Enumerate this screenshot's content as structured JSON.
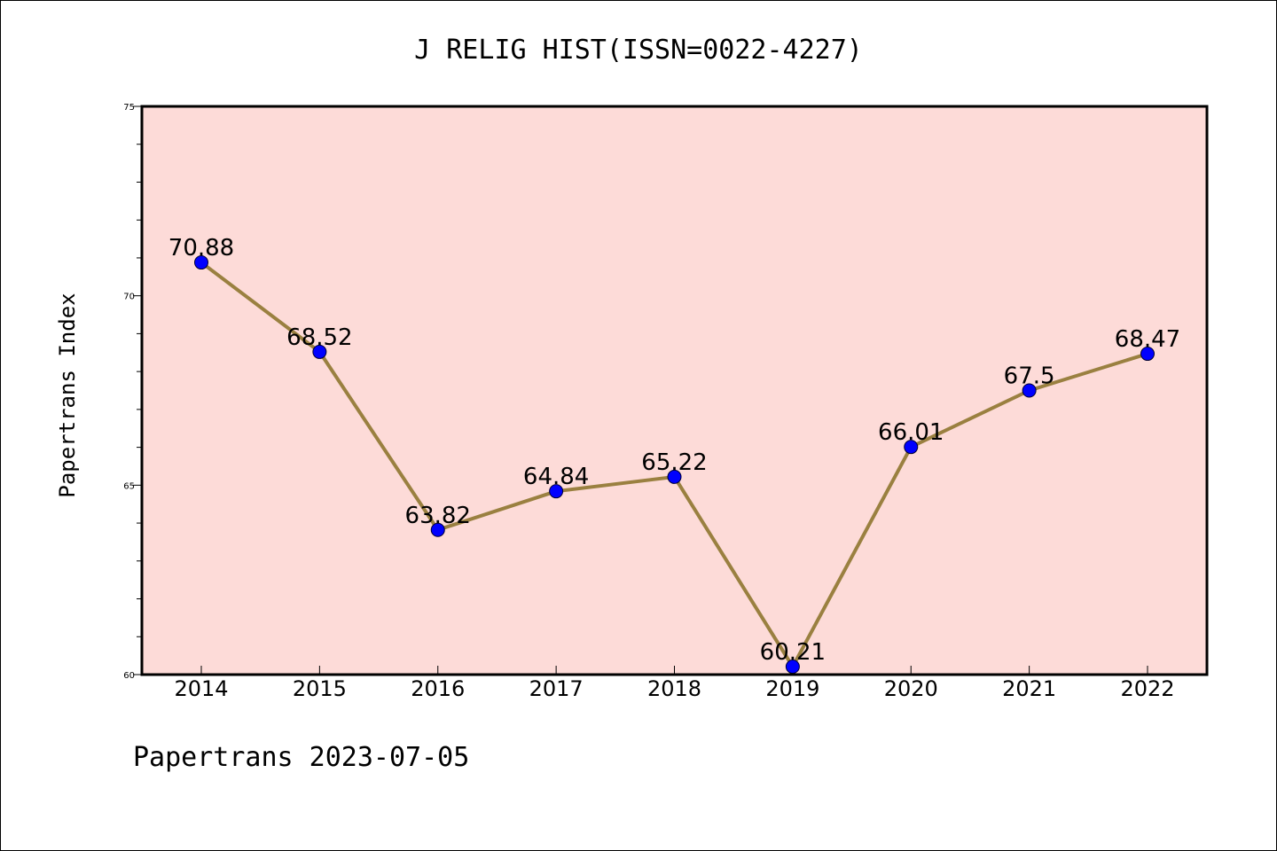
{
  "chart_data": {
    "type": "line",
    "title": "J RELIG HIST(ISSN=0022-4227)",
    "xlabel": "",
    "ylabel": "Papertrans Index",
    "footer": "Papertrans 2023-07-05",
    "categories": [
      "2014",
      "2015",
      "2016",
      "2017",
      "2018",
      "2019",
      "2020",
      "2021",
      "2022"
    ],
    "series": [
      {
        "values": [
          70.88,
          68.52,
          63.82,
          64.84,
          65.22,
          60.21,
          66.01,
          67.5,
          68.47
        ],
        "labels": [
          "70.88",
          "68.52",
          "63.82",
          "64.84",
          "65.22",
          "60.21",
          "66.01",
          "67.5",
          "68.47"
        ]
      }
    ],
    "ylim": [
      60,
      75
    ],
    "yticks": [
      "60",
      "65",
      "70",
      "75"
    ],
    "grid": false,
    "colors": {
      "plot_background": "#fddbd8",
      "line": "#9a8040",
      "marker": "#0000ff"
    }
  }
}
